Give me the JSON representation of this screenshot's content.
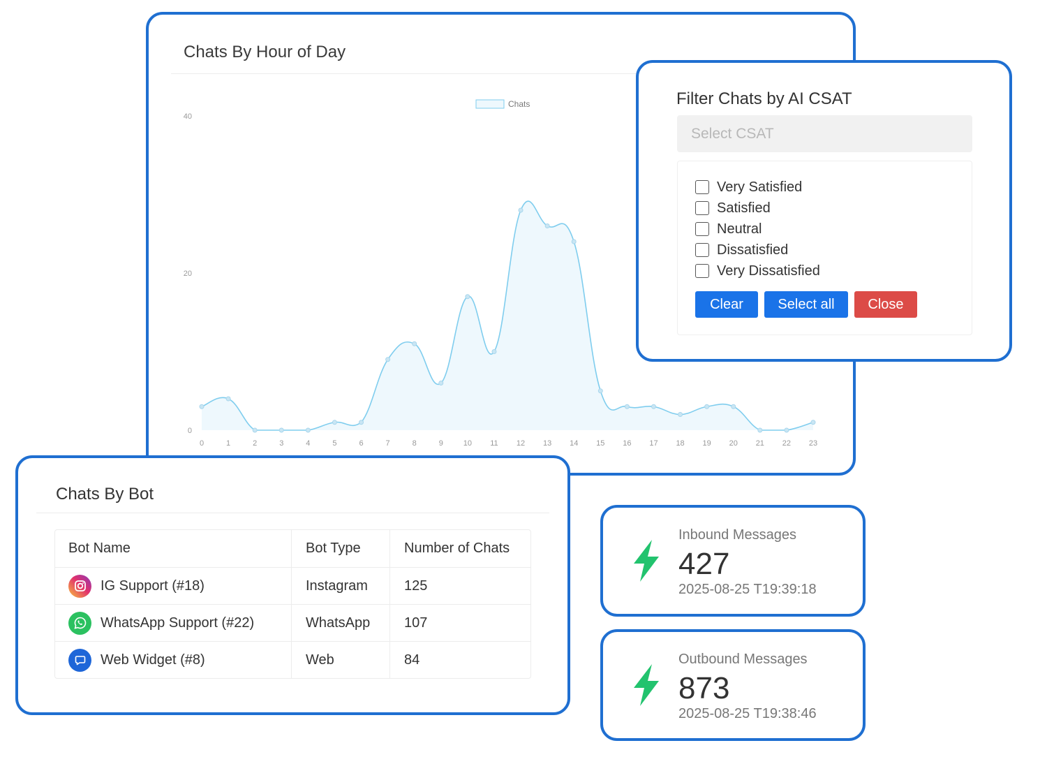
{
  "chart_card": {
    "title": "Chats By Hour of Day"
  },
  "chart_data": {
    "type": "area",
    "title": "Chats By Hour of Day",
    "legend": [
      "Chats"
    ],
    "legend_position": "top-center",
    "x": [
      0,
      1,
      2,
      3,
      4,
      5,
      6,
      7,
      8,
      9,
      10,
      11,
      12,
      13,
      14,
      15,
      16,
      17,
      18,
      19,
      20,
      21,
      22,
      23
    ],
    "series": [
      {
        "name": "Chats",
        "values": [
          3,
          4,
          0,
          0,
          0,
          1,
          1,
          9,
          11,
          6,
          17,
          10,
          28,
          26,
          24,
          5,
          3,
          3,
          2,
          3,
          3,
          0,
          0,
          1
        ]
      }
    ],
    "ylim": [
      0,
      40
    ],
    "yticks": [
      0,
      20,
      40
    ],
    "xlabel": "",
    "ylabel": "",
    "line_color": "#7fcdee",
    "fill_color": "#eef8fd"
  },
  "filter": {
    "title": "Filter Chats by AI CSAT",
    "select_placeholder": "Select CSAT",
    "options": [
      "Very Satisfied",
      "Satisfied",
      "Neutral",
      "Dissatisfied",
      "Very Dissatisfied"
    ],
    "buttons": {
      "clear": "Clear",
      "select_all": "Select all",
      "close": "Close"
    }
  },
  "bots": {
    "title": "Chats By Bot",
    "headers": [
      "Bot Name",
      "Bot Type",
      "Number of Chats"
    ],
    "rows": [
      {
        "name": "IG Support (#18)",
        "type": "Instagram",
        "chats": "125",
        "icon": "instagram-icon"
      },
      {
        "name": "WhatsApp Support (#22)",
        "type": "WhatsApp",
        "chats": "107",
        "icon": "whatsapp-icon"
      },
      {
        "name": "Web Widget (#8)",
        "type": "Web",
        "chats": "84",
        "icon": "web-chat-icon"
      }
    ]
  },
  "inbound": {
    "label": "Inbound Messages",
    "value": "427",
    "timestamp": "2025-08-25 T19:39:18",
    "icon": "lightning-icon"
  },
  "outbound": {
    "label": "Outbound Messages",
    "value": "873",
    "timestamp": "2025-08-25 T19:38:46",
    "icon": "lightning-icon"
  },
  "colors": {
    "border": "#1f6fd1",
    "primary": "#1a73e8",
    "danger": "#dc4b47",
    "bolt": "#22c36e"
  }
}
